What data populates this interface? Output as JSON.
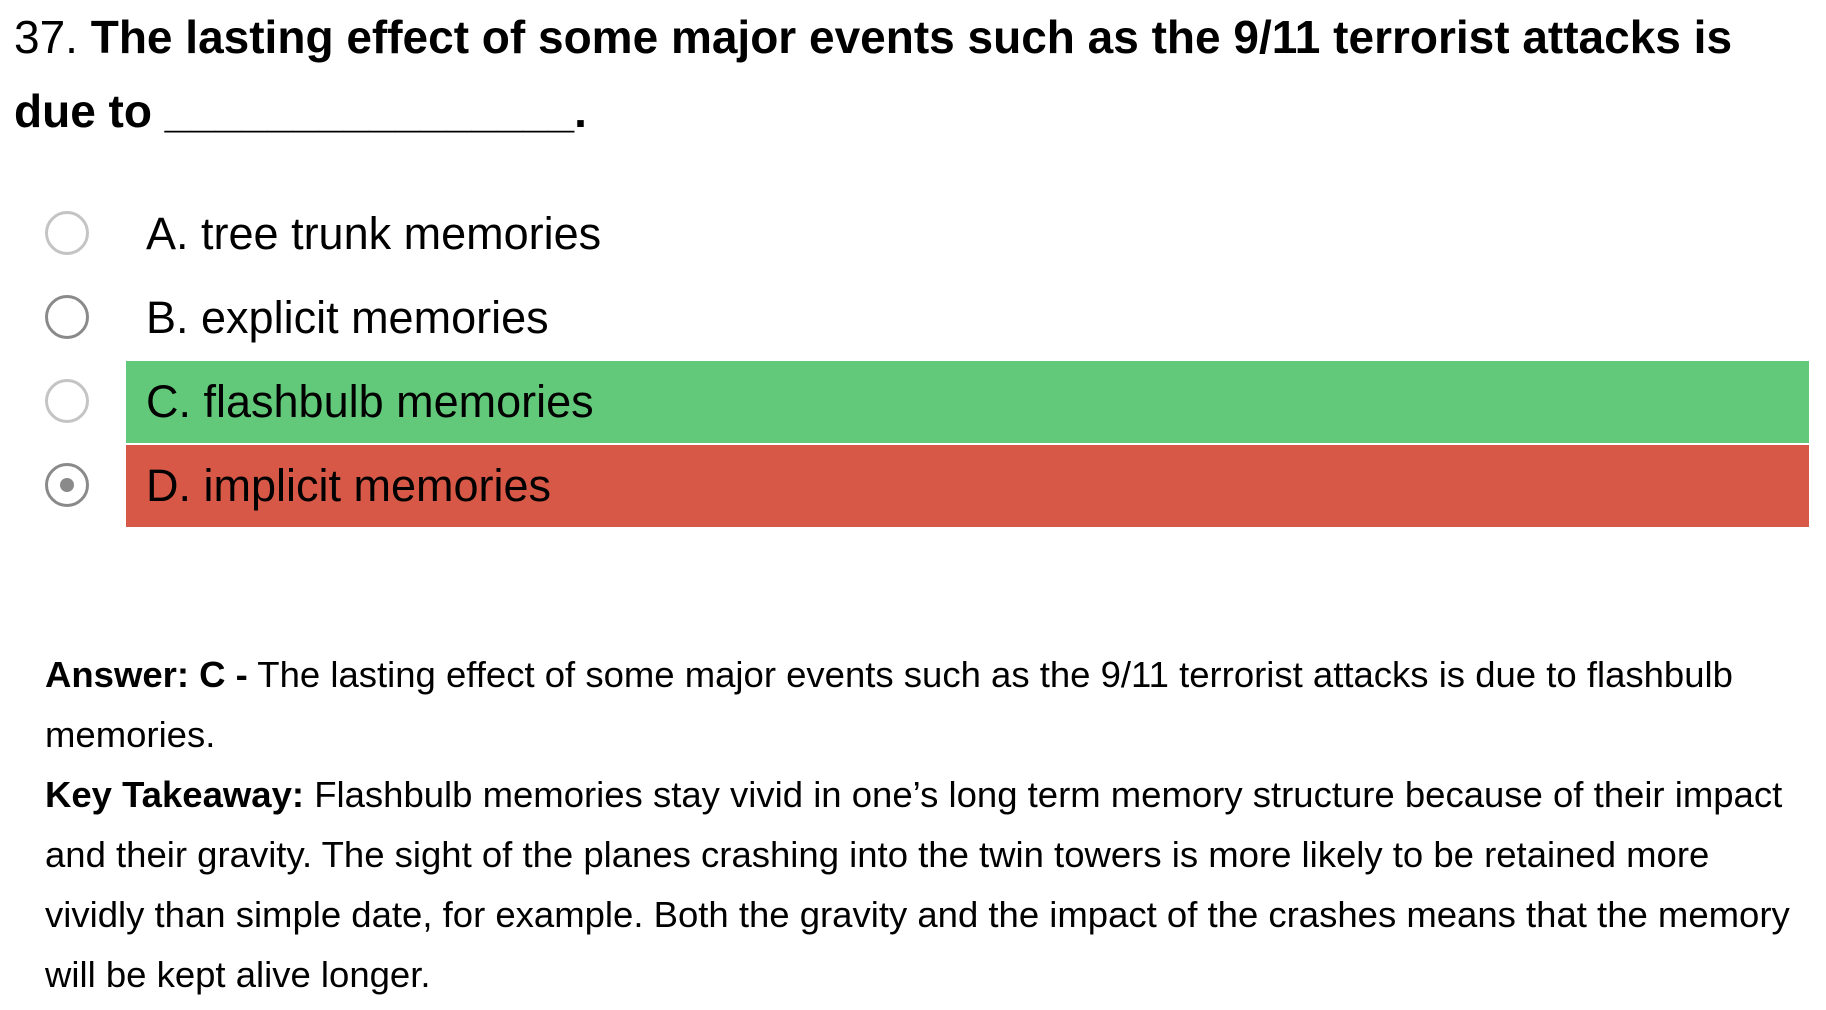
{
  "question": {
    "number": "37.",
    "text": "The lasting effect of some major events such as the 9/11 terrorist attacks is due to",
    "blank": "________________."
  },
  "options": [
    {
      "label": "A. tree trunk memories",
      "state": "none",
      "selected": false
    },
    {
      "label": "B. explicit memories",
      "state": "none",
      "selected": false
    },
    {
      "label": "C. flashbulb memories",
      "state": "correct",
      "selected": false
    },
    {
      "label": "D. implicit memories",
      "state": "incorrect",
      "selected": true
    }
  ],
  "colors": {
    "correct": "#62c97a",
    "incorrect": "#d75846"
  },
  "answer": {
    "label": "Answer: C -",
    "text": "The lasting effect of some major events such as the 9/11 terrorist attacks is due to flashbulb memories."
  },
  "takeaway": {
    "label": "Key Takeaway:",
    "text": "Flashbulb memories stay vivid in one’s long term memory structure because of their impact and their gravity. The sight of the planes crashing into the twin towers is more likely to be retained more vividly than simple date, for example. Both the gravity and the impact of the crashes means that the memory will be kept alive longer."
  }
}
